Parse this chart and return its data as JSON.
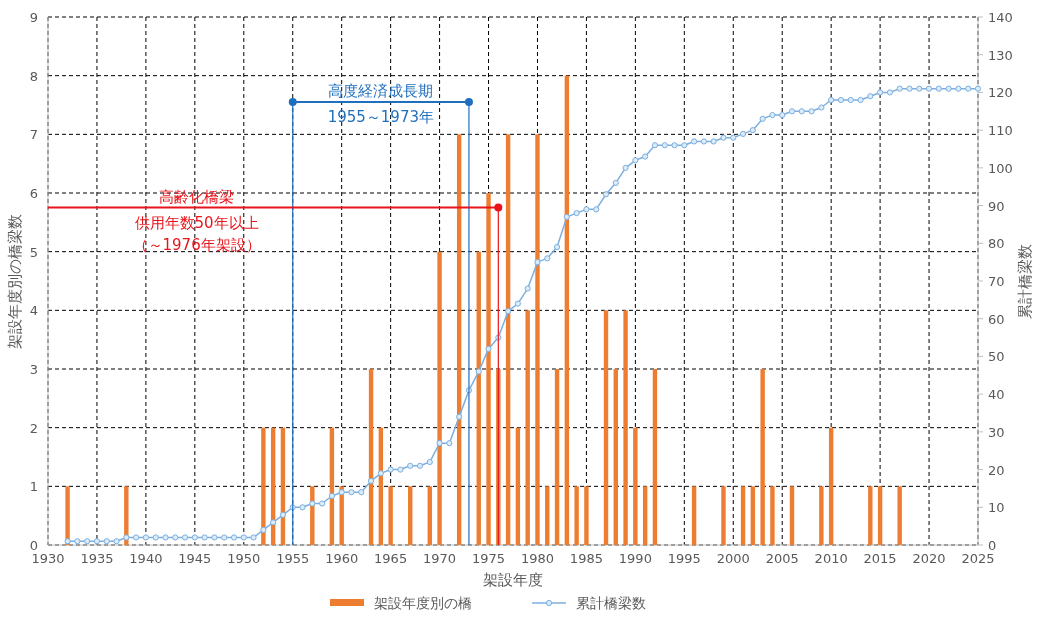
{
  "chart_data": {
    "type": "bar",
    "xlabel": "架設年度",
    "ylabel": "架設年度別の橋梁数",
    "y2label": "累計橋梁数",
    "xlim": [
      1930,
      2025
    ],
    "xticks": [
      1930,
      1935,
      1940,
      1945,
      1950,
      1955,
      1960,
      1965,
      1970,
      1975,
      1980,
      1985,
      1990,
      1995,
      2000,
      2005,
      2010,
      2015,
      2020,
      2025
    ],
    "ylim": [
      0,
      9
    ],
    "yticks": [
      0,
      1,
      2,
      3,
      4,
      5,
      6,
      7,
      8,
      9
    ],
    "y2lim": [
      0,
      140
    ],
    "y2ticks": [
      0,
      10,
      20,
      30,
      40,
      50,
      60,
      70,
      80,
      90,
      100,
      110,
      120,
      130,
      140
    ],
    "grid": true,
    "legend": "bottom",
    "marker": "circle",
    "series": [
      {
        "name": "架設年度別の橋",
        "color": "#ed7d31",
        "x": [
          1932,
          1938,
          1952,
          1953,
          1954,
          1957,
          1959,
          1960,
          1963,
          1964,
          1965,
          1967,
          1969,
          1970,
          1972,
          1974,
          1975,
          1976,
          1977,
          1978,
          1979,
          1980,
          1981,
          1982,
          1983,
          1984,
          1985,
          1987,
          1988,
          1989,
          1990,
          1991,
          1992,
          1996,
          1999,
          2001,
          2002,
          2003,
          2004,
          2006,
          2009,
          2010,
          2014,
          2015,
          2017
        ],
        "values": [
          1,
          1,
          2,
          2,
          2,
          1,
          2,
          1,
          3,
          2,
          1,
          1,
          1,
          5,
          7,
          5,
          6,
          3,
          7,
          2,
          4,
          7,
          1,
          3,
          8,
          1,
          1,
          4,
          3,
          4,
          2,
          1,
          3,
          1,
          1,
          1,
          1,
          3,
          1,
          1,
          1,
          2,
          1,
          1,
          1
        ]
      },
      {
        "name": "累計橋梁数",
        "type": "line",
        "axis": "y2",
        "color": "#7cafe0",
        "x": [
          1932,
          1933,
          1934,
          1935,
          1936,
          1937,
          1938,
          1939,
          1940,
          1941,
          1942,
          1943,
          1944,
          1945,
          1946,
          1947,
          1948,
          1949,
          1950,
          1951,
          1952,
          1953,
          1954,
          1955,
          1956,
          1957,
          1958,
          1959,
          1960,
          1961,
          1962,
          1963,
          1964,
          1965,
          1966,
          1967,
          1968,
          1969,
          1970,
          1971,
          1972,
          1973,
          1974,
          1975,
          1976,
          1977,
          1978,
          1979,
          1980,
          1981,
          1982,
          1983,
          1984,
          1985,
          1986,
          1987,
          1988,
          1989,
          1990,
          1991,
          1992,
          1993,
          1994,
          1995,
          1996,
          1997,
          1998,
          1999,
          2000,
          2001,
          2002,
          2003,
          2004,
          2005,
          2006,
          2007,
          2008,
          2009,
          2010,
          2011,
          2012,
          2013,
          2014,
          2015,
          2016,
          2017,
          2018,
          2019,
          2020,
          2021,
          2022,
          2023,
          2024,
          2025
        ],
        "values": [
          1,
          1,
          1,
          1,
          1,
          1,
          2,
          2,
          2,
          2,
          2,
          2,
          2,
          2,
          2,
          2,
          2,
          2,
          2,
          2,
          4,
          6,
          8,
          10,
          10,
          11,
          11,
          13,
          14,
          14,
          14,
          17,
          19,
          20,
          20,
          21,
          21,
          22,
          27,
          27,
          34,
          41,
          46,
          52,
          55,
          62,
          64,
          68,
          75,
          76,
          79,
          87,
          88,
          89,
          89,
          93,
          96,
          100,
          102,
          103,
          106,
          106,
          106,
          106,
          107,
          107,
          107,
          108,
          108,
          109,
          110,
          113,
          114,
          114,
          115,
          115,
          115,
          116,
          118,
          118,
          118,
          118,
          119,
          120,
          120,
          121,
          121,
          121,
          121,
          121,
          121,
          121,
          121,
          121
        ]
      }
    ],
    "ref_lines": [
      {
        "axis": "x",
        "value": 1955,
        "color": "#1f6fbf"
      },
      {
        "axis": "x",
        "value": 1973,
        "color": "#1f6fbf"
      },
      {
        "axis": "x",
        "value": 1976,
        "color": "#e8141b"
      }
    ],
    "annotations": [
      "高度経済成長期",
      "1955～1973年",
      "高齢化橋梁",
      "供用年数50年以上",
      "（～1976年架設）"
    ]
  }
}
